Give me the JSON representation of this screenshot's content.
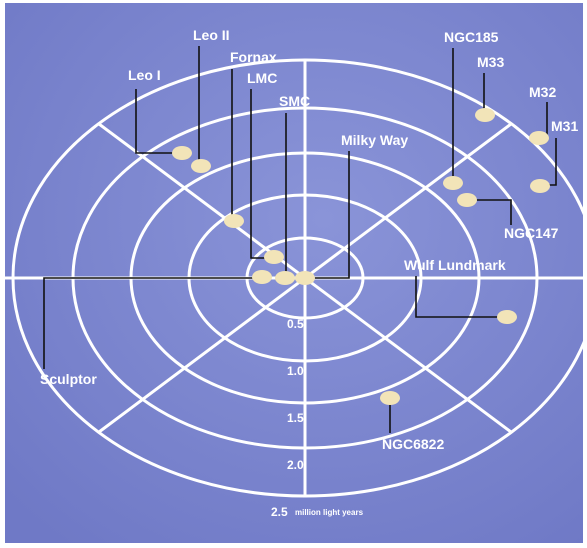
{
  "diagram": {
    "colors": {
      "background": "#6f79c6",
      "background_light": "#8a94d8",
      "rings": "#ffffff",
      "galaxy": "#f2e4b8",
      "leader": "#111111",
      "text": "#ffffff"
    },
    "scale": {
      "labels": [
        "0.5",
        "1.0",
        "1.5",
        "2.0",
        "2.5"
      ],
      "unit": "million light years"
    },
    "galaxies": [
      {
        "key": "milky_way",
        "label": "Milky Way"
      },
      {
        "key": "smc",
        "label": "SMC"
      },
      {
        "key": "lmc",
        "label": "LMC"
      },
      {
        "key": "fornax",
        "label": "Fornax"
      },
      {
        "key": "leo_i",
        "label": "Leo I"
      },
      {
        "key": "leo_ii",
        "label": "Leo II"
      },
      {
        "key": "sculptor",
        "label": "Sculptor"
      },
      {
        "key": "ngc185",
        "label": "NGC185"
      },
      {
        "key": "m33",
        "label": "M33"
      },
      {
        "key": "m32",
        "label": "M32"
      },
      {
        "key": "m31",
        "label": "M31"
      },
      {
        "key": "ngc147",
        "label": "NGC147"
      },
      {
        "key": "wulf_lundmark",
        "label": "Wulf Lundmark"
      },
      {
        "key": "ngc6822",
        "label": "NGC6822"
      }
    ]
  }
}
